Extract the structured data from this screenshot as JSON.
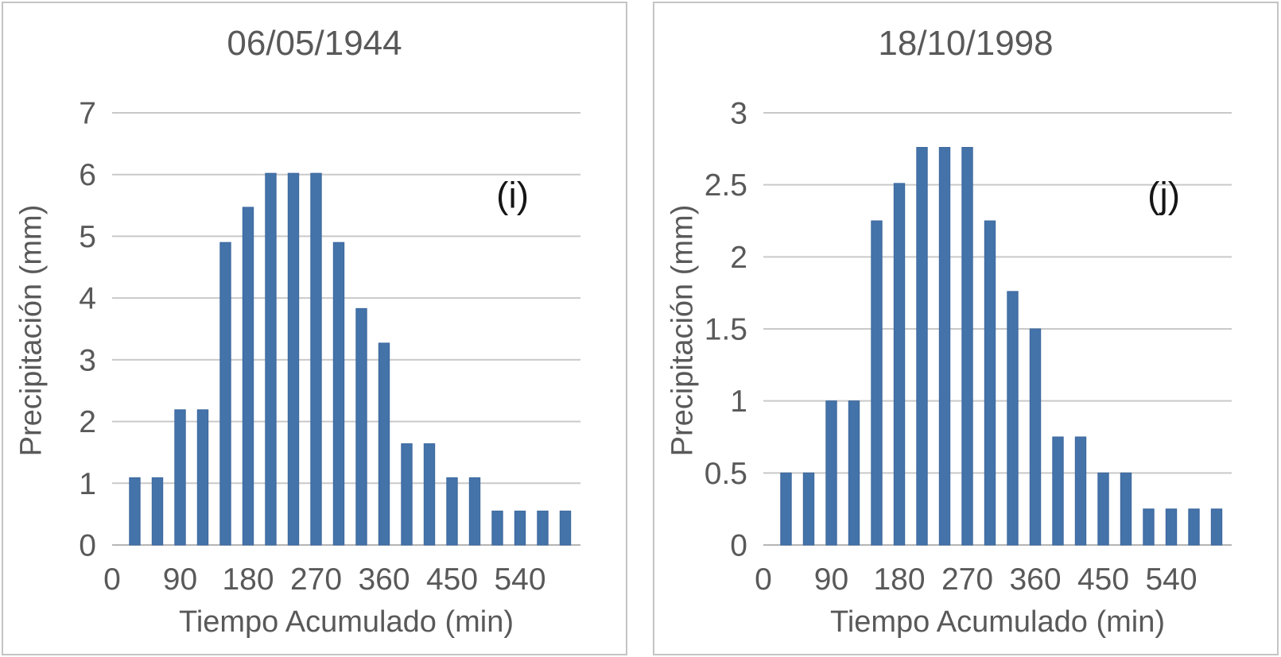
{
  "styles": {
    "bar_color": "#4473A9",
    "bar_edge_color": "#3C679D",
    "grid_color": "#C9C9C9",
    "axis_line_color": "#B5B5B5",
    "text_color": "#595959",
    "annotation_color": "#161616",
    "panel_border_color": "#C6C3C6",
    "background": "#FFFFFF"
  },
  "chart_data": [
    {
      "type": "bar",
      "title": "06/05/1944",
      "xlabel": "Tiempo Acumulado (min)",
      "ylabel": "Precipitación (mm)",
      "annotation": "(i)",
      "annotation_pos": {
        "x": 0.855,
        "y": 0.19
      },
      "x": [
        30,
        60,
        90,
        120,
        150,
        180,
        210,
        240,
        270,
        300,
        330,
        360,
        390,
        420,
        450,
        480,
        510,
        540,
        570,
        600
      ],
      "values": [
        1.09,
        1.09,
        2.19,
        2.19,
        4.9,
        5.47,
        6.02,
        6.02,
        6.02,
        4.9,
        3.83,
        3.27,
        1.64,
        1.64,
        1.09,
        1.09,
        0.55,
        0.55,
        0.55,
        0.55
      ],
      "xlim": [
        0,
        620
      ],
      "ylim": [
        0,
        7
      ],
      "xticks": [
        0,
        90,
        180,
        270,
        360,
        450,
        540
      ],
      "yticks": [
        "0",
        "1",
        "2",
        "3",
        "4",
        "5",
        "6",
        "7"
      ],
      "grid": true,
      "legend": "none"
    },
    {
      "type": "bar",
      "title": "18/10/1998",
      "xlabel": "Tiempo Acumulado (min)",
      "ylabel": "Precipitación (mm)",
      "annotation": "(j)",
      "annotation_pos": {
        "x": 0.855,
        "y": 0.19
      },
      "x": [
        30,
        60,
        90,
        120,
        150,
        180,
        210,
        240,
        270,
        300,
        330,
        360,
        390,
        420,
        450,
        480,
        510,
        540,
        570,
        600
      ],
      "values": [
        0.5,
        0.5,
        1.0,
        1.0,
        2.25,
        2.51,
        2.76,
        2.76,
        2.76,
        2.25,
        1.76,
        1.5,
        0.75,
        0.75,
        0.5,
        0.5,
        0.25,
        0.25,
        0.25,
        0.25
      ],
      "xlim": [
        0,
        620
      ],
      "ylim": [
        0,
        3
      ],
      "xticks": [
        0,
        90,
        180,
        270,
        360,
        450,
        540
      ],
      "yticks": [
        "0",
        "0.5",
        "1",
        "1.5",
        "2",
        "2.5",
        "3"
      ],
      "grid": true,
      "legend": "none"
    }
  ]
}
